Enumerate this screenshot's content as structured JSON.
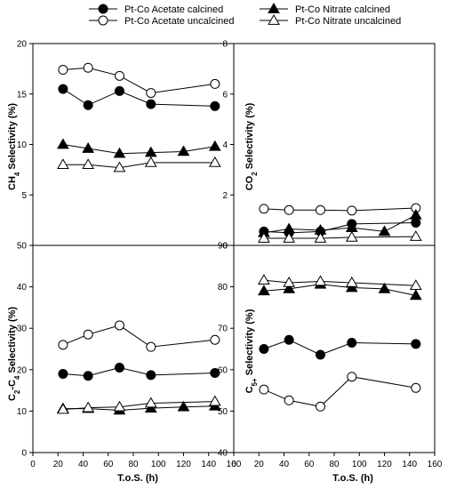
{
  "legend": [
    {
      "label": "Pt-Co Acetate calcined",
      "marker": "circle",
      "filled": true
    },
    {
      "label": "Pt-Co Acetate uncalcined",
      "marker": "circle",
      "filled": false
    },
    {
      "label": "Pt-Co Nitrate calcined",
      "marker": "triangle",
      "filled": true
    },
    {
      "label": "Pt-Co Nitrate uncalcined",
      "marker": "triangle",
      "filled": false
    }
  ],
  "chart_data": [
    {
      "type": "line",
      "ylabel_main": "CH",
      "ylabel_sub": "4",
      "ylabel_rest": " Selectivity (%)",
      "xlabel": "",
      "xlim": [
        0,
        160
      ],
      "ylim": [
        0,
        20
      ],
      "yticks": [
        "5",
        "10",
        "15",
        "20"
      ],
      "xticks": [],
      "series": [
        {
          "name": "Pt-Co Acetate calcined",
          "marker": "circle",
          "filled": true,
          "x": [
            24,
            44,
            69,
            94,
            145
          ],
          "y": [
            15.5,
            13.9,
            15.3,
            14.0,
            13.8
          ]
        },
        {
          "name": "Pt-Co Acetate uncalcined",
          "marker": "circle",
          "filled": false,
          "x": [
            24,
            44,
            69,
            94,
            145
          ],
          "y": [
            17.4,
            17.6,
            16.8,
            15.1,
            16.0
          ]
        },
        {
          "name": "Pt-Co Nitrate calcined",
          "marker": "triangle",
          "filled": true,
          "x": [
            24,
            44,
            69,
            94,
            120,
            145
          ],
          "y": [
            10.0,
            9.6,
            9.1,
            9.2,
            9.3,
            9.8
          ]
        },
        {
          "name": "Pt-Co Nitrate uncalcined",
          "marker": "triangle",
          "filled": false,
          "x": [
            24,
            44,
            69,
            94,
            145
          ],
          "y": [
            8.0,
            8.0,
            7.7,
            8.2,
            8.2
          ]
        }
      ]
    },
    {
      "type": "line",
      "ylabel_main": "CO",
      "ylabel_sub": "2",
      "ylabel_rest": " Selectivity (%)",
      "xlabel": "",
      "xlim": [
        0,
        160
      ],
      "ylim": [
        0,
        8
      ],
      "yticks": [
        "0",
        "2",
        "4",
        "6",
        "8"
      ],
      "xticks": [],
      "series": [
        {
          "name": "Pt-Co Acetate calcined",
          "marker": "circle",
          "filled": true,
          "x": [
            24,
            44,
            69,
            94,
            145
          ],
          "y": [
            0.55,
            0.5,
            0.55,
            0.85,
            0.9
          ]
        },
        {
          "name": "Pt-Co Acetate uncalcined",
          "marker": "circle",
          "filled": false,
          "x": [
            24,
            44,
            69,
            94,
            145
          ],
          "y": [
            1.45,
            1.4,
            1.4,
            1.38,
            1.48
          ]
        },
        {
          "name": "Pt-Co Nitrate calcined",
          "marker": "triangle",
          "filled": true,
          "x": [
            24,
            44,
            69,
            94,
            120,
            145
          ],
          "y": [
            0.5,
            0.65,
            0.6,
            0.7,
            0.55,
            1.2
          ]
        },
        {
          "name": "Pt-Co Nitrate uncalcined",
          "marker": "triangle",
          "filled": false,
          "x": [
            24,
            44,
            69,
            94,
            145
          ],
          "y": [
            0.28,
            0.28,
            0.28,
            0.32,
            0.35
          ]
        }
      ]
    },
    {
      "type": "line",
      "ylabel_main": "C",
      "ylabel_sub": "2",
      "ylabel_rest": "-C",
      "ylabel_sub2": "4",
      "ylabel_rest2": " Selectivity (%)",
      "xlabel": "T.o.S. (h)",
      "xlim": [
        0,
        160
      ],
      "ylim": [
        0,
        50
      ],
      "yticks": [
        "0",
        "10",
        "20",
        "30",
        "40",
        "50"
      ],
      "xticks": [
        "0",
        "20",
        "40",
        "60",
        "80",
        "100",
        "120",
        "140",
        "160"
      ],
      "series": [
        {
          "name": "Pt-Co Acetate calcined",
          "marker": "circle",
          "filled": true,
          "x": [
            24,
            44,
            69,
            94,
            145
          ],
          "y": [
            19.0,
            18.5,
            20.5,
            18.7,
            19.2
          ]
        },
        {
          "name": "Pt-Co Acetate uncalcined",
          "marker": "circle",
          "filled": false,
          "x": [
            24,
            44,
            69,
            94,
            145
          ],
          "y": [
            26.0,
            28.5,
            30.7,
            25.5,
            27.2
          ]
        },
        {
          "name": "Pt-Co Nitrate calcined",
          "marker": "triangle",
          "filled": true,
          "x": [
            24,
            44,
            69,
            94,
            120,
            145
          ],
          "y": [
            10.6,
            10.6,
            10.2,
            10.7,
            11.0,
            11.2
          ]
        },
        {
          "name": "Pt-Co Nitrate uncalcined",
          "marker": "triangle",
          "filled": false,
          "x": [
            24,
            44,
            69,
            94,
            145
          ],
          "y": [
            10.4,
            10.8,
            11.0,
            11.9,
            12.3
          ]
        }
      ]
    },
    {
      "type": "line",
      "ylabel_main": "C",
      "ylabel_sub": "5+",
      "ylabel_rest": " Selectivity (%)",
      "xlabel": "T.o.S. (h)",
      "xlim": [
        0,
        160
      ],
      "ylim": [
        40,
        90
      ],
      "yticks": [
        "40",
        "50",
        "60",
        "70",
        "80",
        "90"
      ],
      "xticks": [
        "0",
        "20",
        "40",
        "60",
        "80",
        "100",
        "120",
        "140",
        "160"
      ],
      "series": [
        {
          "name": "Pt-Co Acetate calcined",
          "marker": "circle",
          "filled": true,
          "x": [
            24,
            44,
            69,
            94,
            145
          ],
          "y": [
            65.0,
            67.2,
            63.6,
            66.5,
            66.2
          ]
        },
        {
          "name": "Pt-Co Acetate uncalcined",
          "marker": "circle",
          "filled": false,
          "x": [
            24,
            44,
            69,
            94,
            145
          ],
          "y": [
            55.2,
            52.6,
            51.1,
            58.3,
            55.6
          ]
        },
        {
          "name": "Pt-Co Nitrate calcined",
          "marker": "triangle",
          "filled": true,
          "x": [
            24,
            44,
            69,
            94,
            120,
            145
          ],
          "y": [
            79.0,
            79.5,
            80.6,
            79.8,
            79.5,
            77.9
          ]
        },
        {
          "name": "Pt-Co Nitrate uncalcined",
          "marker": "triangle",
          "filled": false,
          "x": [
            24,
            44,
            69,
            94,
            145
          ],
          "y": [
            81.6,
            81.0,
            81.3,
            81.0,
            80.3
          ]
        }
      ]
    }
  ]
}
